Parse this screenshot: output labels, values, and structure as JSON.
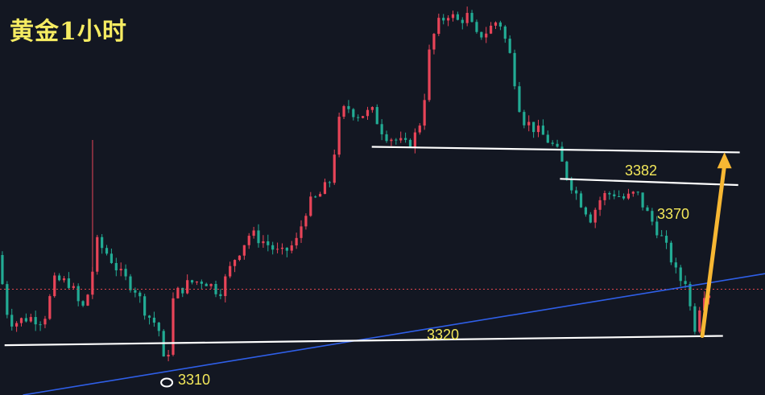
{
  "title": "黄金1小时",
  "chart_data": {
    "type": "candlestick",
    "title": "黄金1小时",
    "ylim": [
      3303,
      3430
    ],
    "current_price": 3337,
    "levels": [
      {
        "name": "resistance-3382",
        "label": "3382",
        "price": 3382,
        "x_start": 0.486,
        "x_end": 0.967
      },
      {
        "name": "resistance-3370",
        "label": "3370",
        "price": 3370,
        "x_start": 0.732,
        "x_end": 0.965
      },
      {
        "name": "support-3320",
        "label": "3320",
        "price": 3320,
        "x_start": 0.006,
        "x_end": 0.945
      }
    ],
    "low_marker": {
      "label": "3310",
      "price": 3307
    },
    "trendline": {
      "from": [
        0.03,
        3303
      ],
      "to": [
        1.0,
        3342
      ]
    },
    "projection": {
      "from": [
        0.918,
        3322
      ],
      "to": [
        0.947,
        3380
      ]
    },
    "close_path": [
      {
        "x": 0.0,
        "y": 3348
      },
      {
        "x": 0.012,
        "y": 3330
      },
      {
        "x": 0.02,
        "y": 3326
      },
      {
        "x": 0.04,
        "y": 3328
      },
      {
        "x": 0.06,
        "y": 3327
      },
      {
        "x": 0.075,
        "y": 3340
      },
      {
        "x": 0.095,
        "y": 3339
      },
      {
        "x": 0.11,
        "y": 3330
      },
      {
        "x": 0.12,
        "y": 3337
      },
      {
        "x": 0.13,
        "y": 3352
      },
      {
        "x": 0.145,
        "y": 3348
      },
      {
        "x": 0.16,
        "y": 3342
      },
      {
        "x": 0.18,
        "y": 3337
      },
      {
        "x": 0.195,
        "y": 3329
      },
      {
        "x": 0.21,
        "y": 3325
      },
      {
        "x": 0.22,
        "y": 3309
      },
      {
        "x": 0.23,
        "y": 3335
      },
      {
        "x": 0.25,
        "y": 3339
      },
      {
        "x": 0.27,
        "y": 3340
      },
      {
        "x": 0.29,
        "y": 3336
      },
      {
        "x": 0.31,
        "y": 3347
      },
      {
        "x": 0.33,
        "y": 3355
      },
      {
        "x": 0.35,
        "y": 3352
      },
      {
        "x": 0.37,
        "y": 3348
      },
      {
        "x": 0.39,
        "y": 3352
      },
      {
        "x": 0.405,
        "y": 3364
      },
      {
        "x": 0.42,
        "y": 3367
      },
      {
        "x": 0.435,
        "y": 3372
      },
      {
        "x": 0.445,
        "y": 3390
      },
      {
        "x": 0.455,
        "y": 3396
      },
      {
        "x": 0.47,
        "y": 3393
      },
      {
        "x": 0.49,
        "y": 3394
      },
      {
        "x": 0.505,
        "y": 3387
      },
      {
        "x": 0.52,
        "y": 3385
      },
      {
        "x": 0.535,
        "y": 3383
      },
      {
        "x": 0.55,
        "y": 3388
      },
      {
        "x": 0.56,
        "y": 3402
      },
      {
        "x": 0.565,
        "y": 3415
      },
      {
        "x": 0.575,
        "y": 3422
      },
      {
        "x": 0.59,
        "y": 3426
      },
      {
        "x": 0.6,
        "y": 3423
      },
      {
        "x": 0.615,
        "y": 3425
      },
      {
        "x": 0.625,
        "y": 3418
      },
      {
        "x": 0.64,
        "y": 3420
      },
      {
        "x": 0.655,
        "y": 3424
      },
      {
        "x": 0.67,
        "y": 3412
      },
      {
        "x": 0.685,
        "y": 3392
      },
      {
        "x": 0.7,
        "y": 3389
      },
      {
        "x": 0.715,
        "y": 3386
      },
      {
        "x": 0.73,
        "y": 3382
      },
      {
        "x": 0.745,
        "y": 3373
      },
      {
        "x": 0.76,
        "y": 3366
      },
      {
        "x": 0.775,
        "y": 3360
      },
      {
        "x": 0.79,
        "y": 3367
      },
      {
        "x": 0.805,
        "y": 3368
      },
      {
        "x": 0.82,
        "y": 3366
      },
      {
        "x": 0.835,
        "y": 3368
      },
      {
        "x": 0.85,
        "y": 3361
      },
      {
        "x": 0.865,
        "y": 3355
      },
      {
        "x": 0.88,
        "y": 3347
      },
      {
        "x": 0.89,
        "y": 3340
      },
      {
        "x": 0.9,
        "y": 3340
      },
      {
        "x": 0.91,
        "y": 3323
      },
      {
        "x": 0.915,
        "y": 3330
      },
      {
        "x": 0.925,
        "y": 3337
      },
      {
        "x": 0.93,
        "y": 3336
      }
    ]
  },
  "colors": {
    "background": "#131722",
    "up": "#e84458",
    "down": "#22ab94",
    "level_line": "#ffffff",
    "level_text": "#f3e85a",
    "trendline": "#2f5fe8",
    "arrow": "#f7b733",
    "current_price_line": "#e0464e",
    "title": "#f6ec62"
  }
}
